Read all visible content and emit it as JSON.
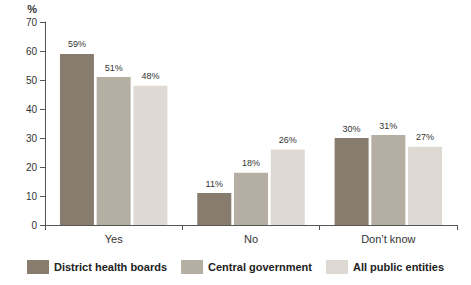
{
  "chart_data": {
    "type": "bar",
    "ylabel": "%",
    "categories": [
      "Yes",
      "No",
      "Don’t know"
    ],
    "series": [
      {
        "name": "District health boards",
        "color": "#877c6d",
        "values": [
          59,
          11,
          30
        ],
        "value_labels": [
          "59%",
          "11%",
          "30%"
        ]
      },
      {
        "name": "Central government",
        "color": "#b5aea3",
        "values": [
          51,
          18,
          31
        ],
        "value_labels": [
          "51%",
          "18%",
          "31%"
        ]
      },
      {
        "name": "All public entities",
        "color": "#dedad3",
        "values": [
          48,
          26,
          27
        ],
        "value_labels": [
          "48%",
          "26%",
          "27%"
        ]
      }
    ],
    "ylim": [
      0,
      70
    ],
    "yticks": [
      0,
      10,
      20,
      30,
      40,
      50,
      60,
      70
    ],
    "grid": false,
    "legend": "bottom",
    "data_labels": true
  }
}
